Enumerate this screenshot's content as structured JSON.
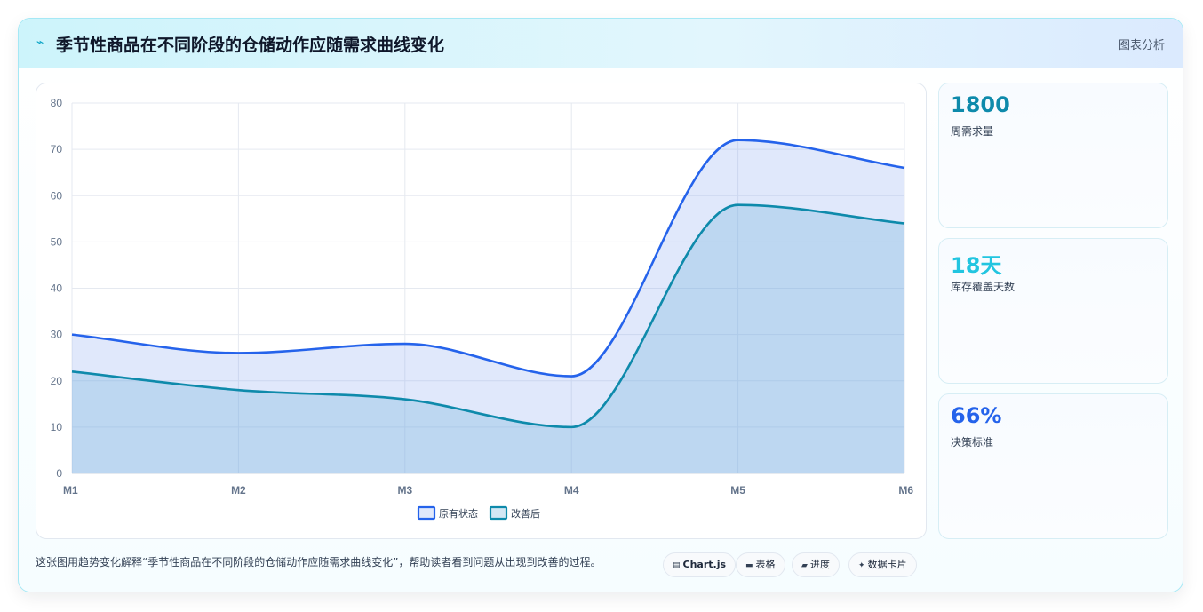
{
  "header": {
    "icon": "chart-line-icon",
    "icon_glyph": "⌁",
    "title": "季节性商品在不同阶段的仓储动作应随需求曲线变化",
    "tag": "图表分析"
  },
  "chart_data": {
    "type": "area",
    "categories": [
      "M1",
      "M2",
      "M3",
      "M4",
      "M5",
      "M6"
    ],
    "series": [
      {
        "name": "原有状态",
        "values": [
          30,
          26,
          28,
          21,
          72,
          66
        ],
        "color": "#2563eb",
        "fill": "rgba(125,160,240,0.24)"
      },
      {
        "name": "改善后",
        "values": [
          22,
          18,
          16,
          10,
          58,
          54
        ],
        "color": "#0e8aab",
        "fill": "rgba(110,175,220,0.30)"
      }
    ],
    "ylim": [
      0,
      80
    ],
    "yticks": [
      0,
      10,
      20,
      30,
      40,
      50,
      60,
      70,
      80
    ],
    "grid": true,
    "legend_position": "bottom"
  },
  "stats": [
    {
      "value": "1800",
      "label": "周需求量",
      "color": "#0e8aab"
    },
    {
      "value": "18天",
      "label": "库存覆盖天数",
      "color": "#22c5e0"
    },
    {
      "value": "66%",
      "label": "决策标准",
      "color": "#2563eb"
    }
  ],
  "footer": {
    "caption": "这张图用趋势变化解释“季节性商品在不同阶段的仓储动作应随需求曲线变化”，帮助读者看到问题从出现到改善的过程。",
    "pills": [
      {
        "icon": "chart-icon",
        "glyph": "▤",
        "label": "Chart.js"
      },
      {
        "icon": "table-icon",
        "glyph": "▬",
        "label": "表格"
      },
      {
        "icon": "progress-icon",
        "glyph": "▰",
        "label": "进度"
      },
      {
        "icon": "card-icon",
        "glyph": "✦",
        "label": "数据卡片"
      }
    ]
  }
}
